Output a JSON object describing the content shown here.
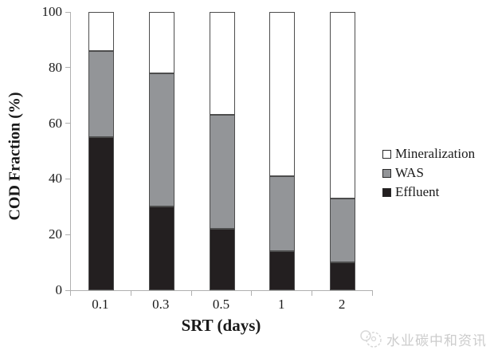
{
  "chart_data": {
    "type": "bar",
    "stacked": true,
    "xlabel": "SRT (days)",
    "ylabel": "COD Fraction (%)",
    "ylim": [
      0,
      100
    ],
    "yticks": [
      0,
      20,
      40,
      60,
      80,
      100
    ],
    "categories": [
      "0.1",
      "0.3",
      "0.5",
      "1",
      "2"
    ],
    "series": [
      {
        "name": "Effluent",
        "color": "#231f20",
        "values": [
          55,
          30,
          22,
          14,
          10
        ]
      },
      {
        "name": "WAS",
        "color": "#939598",
        "values": [
          31,
          48,
          41,
          27,
          23
        ]
      },
      {
        "name": "Mineralization",
        "color": "#ffffff",
        "values": [
          14,
          22,
          37,
          59,
          67
        ]
      }
    ],
    "legend_position": "right",
    "legend_order": [
      "Mineralization",
      "WAS",
      "Effluent"
    ],
    "grid": false,
    "bar_border_color": "#4d4d4d",
    "axis_color": "#b0b0b0",
    "text_color": "#1a1a1a"
  },
  "watermark": {
    "text": "水业碳中和资讯",
    "color": "#cccccc",
    "icon": "bubbles-logo-icon"
  }
}
